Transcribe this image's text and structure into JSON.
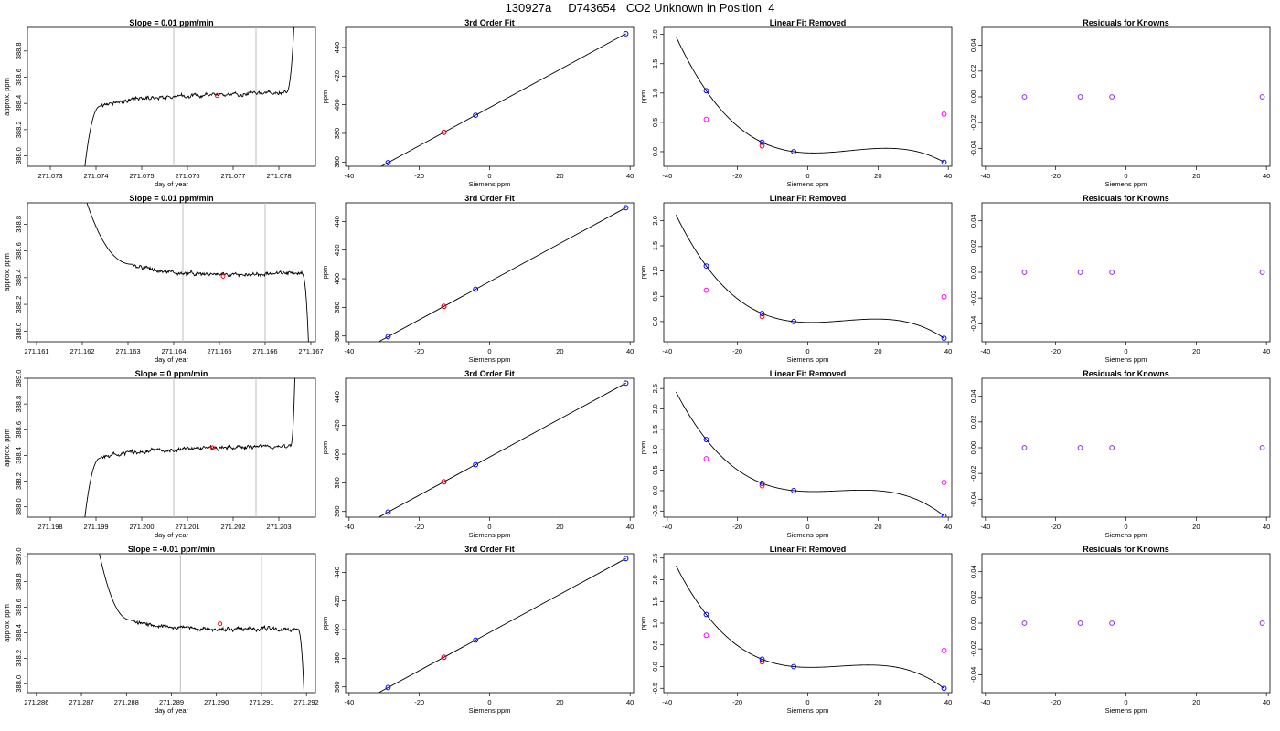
{
  "page_title": "130927a     D743654   CO2 Unknown in Position  4",
  "chart_data": [
    {
      "panel": "raw",
      "type": "line",
      "title": "Slope =  0.01  ppm/min",
      "xlabel": "day of year",
      "ylabel": "approx. ppm",
      "xlim": [
        271.0725,
        271.0788
      ],
      "ylim": [
        387.92,
        388.98
      ],
      "xticks": [
        271.073,
        271.074,
        271.075,
        271.076,
        271.077,
        271.078
      ],
      "yticks": [
        388.0,
        388.2,
        388.4,
        388.6,
        388.8
      ],
      "vlines": [
        271.0757,
        271.0775
      ],
      "mean_point": [
        271.07665,
        388.46
      ],
      "trace": {
        "start": 271.07375,
        "plateau_begin": 271.0741,
        "plateau_end": 271.07815,
        "end": 271.07833,
        "rise_from": 387.9,
        "jump_to": 388.98,
        "plateau_start_value": 388.38,
        "plateau_end_value": 388.48
      }
    },
    {
      "panel": "fit",
      "type": "line",
      "title": "3rd Order Fit",
      "xlabel": "Siemens ppm",
      "ylabel": "ppm",
      "xlim": [
        -41,
        41
      ],
      "ylim": [
        357,
        454
      ],
      "xticks": [
        -40,
        -20,
        0,
        20,
        40
      ],
      "yticks": [
        360,
        380,
        400,
        420,
        440
      ],
      "line_x": [
        -37.5,
        38.8
      ],
      "knowns_x": [
        -28.9,
        -13.0,
        -4.0,
        38.8
      ],
      "unknown_x": [
        -13.0
      ]
    },
    {
      "panel": "linfit",
      "type": "line",
      "title": "Linear Fit Removed",
      "xlabel": "Siemens ppm",
      "ylabel": "ppm",
      "xlim": [
        -41,
        41
      ],
      "ylim": [
        -0.25,
        2.12
      ],
      "xticks": [
        -40,
        -20,
        0,
        20,
        40
      ],
      "yticks": [
        0.0,
        0.5,
        1.0,
        1.5,
        2.0
      ],
      "knowns": [
        [
          -28.9,
          1.04
        ],
        [
          -13.0,
          0.16
        ],
        [
          -4.0,
          0.0
        ],
        [
          38.8,
          -0.18
        ]
      ],
      "magenta": [
        [
          -28.9,
          0.55
        ],
        [
          38.8,
          0.64
        ]
      ],
      "unknown": [
        [
          -13.0,
          0.1
        ]
      ],
      "curve": {
        "x_start": -37.5,
        "x_end": 38.8,
        "extrema_x": [
          -13.0,
          20.0
        ]
      }
    },
    {
      "panel": "resid",
      "type": "scatter",
      "title": "Residuals for Knowns",
      "xlabel": "Siemens ppm",
      "ylabel": "",
      "xlim": [
        -41,
        41
      ],
      "ylim": [
        -0.054,
        0.054
      ],
      "xticks": [
        -40,
        -20,
        0,
        20,
        40
      ],
      "yticks": [
        -0.04,
        -0.02,
        0.0,
        0.02,
        0.04
      ],
      "points": [
        [
          -28.9,
          0
        ],
        [
          -13.0,
          0
        ],
        [
          -4.0,
          0
        ],
        [
          38.8,
          0
        ]
      ]
    },
    {
      "panel": "raw",
      "type": "line",
      "title": "Slope =  0.01  ppm/min",
      "xlabel": "day of year",
      "ylabel": "approx. ppm",
      "xlim": [
        271.1608,
        271.1671
      ],
      "ylim": [
        387.92,
        388.96
      ],
      "xticks": [
        271.161,
        271.162,
        271.163,
        271.164,
        271.165,
        271.166,
        271.167
      ],
      "yticks": [
        388.0,
        388.2,
        388.4,
        388.6,
        388.8
      ],
      "vlines": [
        271.1642,
        271.166
      ],
      "mean_point": [
        271.16508,
        388.41
      ],
      "trace": {
        "start": 271.1621,
        "plateau_begin": 271.1631,
        "plateau_end": 271.1668,
        "end": 271.16695,
        "fall_from": 388.96,
        "fall_to": 387.9,
        "plateau_start_value": 388.5,
        "plateau_end_value": 388.43
      }
    },
    {
      "panel": "fit",
      "type": "line",
      "title": "3rd Order Fit",
      "xlabel": "Siemens ppm",
      "ylabel": "ppm",
      "xlim": [
        -41,
        41
      ],
      "ylim": [
        356,
        453
      ],
      "xticks": [
        -40,
        -20,
        0,
        20,
        40
      ],
      "yticks": [
        360,
        380,
        400,
        420,
        440
      ],
      "line_x": [
        -37.5,
        38.8
      ],
      "knowns_x": [
        -28.9,
        -13.0,
        -4.0,
        38.8
      ],
      "unknown_x": [
        -13.0
      ]
    },
    {
      "panel": "linfit",
      "type": "line",
      "title": "Linear Fit Removed",
      "xlabel": "Siemens ppm",
      "ylabel": "ppm",
      "xlim": [
        -41,
        41
      ],
      "ylim": [
        -0.4,
        2.35
      ],
      "xticks": [
        -40,
        -20,
        0,
        20,
        40
      ],
      "yticks": [
        0.0,
        0.5,
        1.0,
        1.5,
        2.0
      ],
      "knowns": [
        [
          -28.9,
          1.1
        ],
        [
          -13.0,
          0.16
        ],
        [
          -4.0,
          0.0
        ],
        [
          38.8,
          -0.33
        ]
      ],
      "magenta": [
        [
          -28.9,
          0.62
        ],
        [
          38.8,
          0.49
        ]
      ],
      "unknown": [
        [
          -13.0,
          0.1
        ]
      ],
      "curve": {
        "x_start": -37.5,
        "x_end": 38.8,
        "extrema_x": [
          -13.0,
          20.0
        ]
      }
    },
    {
      "panel": "resid",
      "type": "scatter",
      "title": "Residuals for Knowns",
      "xlabel": "Siemens ppm",
      "ylabel": "",
      "xlim": [
        -41,
        41
      ],
      "ylim": [
        -0.054,
        0.054
      ],
      "xticks": [
        -40,
        -20,
        0,
        20,
        40
      ],
      "yticks": [
        -0.04,
        -0.02,
        0.0,
        0.02,
        0.04
      ],
      "points": [
        [
          -28.9,
          0
        ],
        [
          -13.0,
          0
        ],
        [
          -4.0,
          0
        ],
        [
          38.8,
          0
        ]
      ]
    },
    {
      "panel": "raw",
      "type": "line",
      "title": "Slope =  0  ppm/min",
      "xlabel": "day of year",
      "ylabel": "approx. ppm",
      "xlim": [
        271.1975,
        271.2038
      ],
      "ylim": [
        387.92,
        389.0
      ],
      "xticks": [
        271.198,
        271.199,
        271.2,
        271.201,
        271.202,
        271.203
      ],
      "xticklabels": [
        "271.198",
        "271.199",
        "271.200",
        "271.201",
        "271.202",
        "271.203"
      ],
      "yticks": [
        388.0,
        388.2,
        388.4,
        388.6,
        388.8,
        389.0
      ],
      "vlines": [
        271.2007,
        271.2025
      ],
      "mean_point": [
        271.20155,
        388.46
      ],
      "trace": {
        "start": 271.19875,
        "plateau_begin": 271.1991,
        "plateau_end": 271.20325,
        "end": 271.20335,
        "rise_from": 387.9,
        "jump_to": 389.0,
        "plateau_start_value": 388.38,
        "plateau_end_value": 388.47
      }
    },
    {
      "panel": "fit",
      "type": "line",
      "title": "3rd Order Fit",
      "xlabel": "Siemens ppm",
      "ylabel": "ppm",
      "xlim": [
        -41,
        41
      ],
      "ylim": [
        356,
        453
      ],
      "xticks": [
        -40,
        -20,
        0,
        20,
        40
      ],
      "yticks": [
        360,
        380,
        400,
        420,
        440
      ],
      "line_x": [
        -37.5,
        38.8
      ],
      "knowns_x": [
        -28.9,
        -13.0,
        -4.0,
        38.8
      ],
      "unknown_x": [
        -13.0
      ]
    },
    {
      "panel": "linfit",
      "type": "line",
      "title": "Linear Fit Removed",
      "xlabel": "Siemens ppm",
      "ylabel": "ppm",
      "xlim": [
        -41,
        41
      ],
      "ylim": [
        -0.65,
        2.75
      ],
      "xticks": [
        -40,
        -20,
        0,
        20,
        40
      ],
      "yticks": [
        -0.5,
        0.0,
        0.5,
        1.0,
        1.5,
        2.0,
        2.5
      ],
      "knowns": [
        [
          -28.9,
          1.25
        ],
        [
          -13.0,
          0.18
        ],
        [
          -4.0,
          0.0
        ],
        [
          38.8,
          -0.62
        ]
      ],
      "magenta": [
        [
          -28.9,
          0.78
        ],
        [
          38.8,
          0.2
        ]
      ],
      "unknown": [
        [
          -13.0,
          0.12
        ]
      ],
      "curve": {
        "x_start": -37.5,
        "x_end": 38.8,
        "extrema_x": [
          -13.0,
          16.0
        ]
      }
    },
    {
      "panel": "resid",
      "type": "scatter",
      "title": "Residuals for Knowns",
      "xlabel": "Siemens ppm",
      "ylabel": "",
      "xlim": [
        -41,
        41
      ],
      "ylim": [
        -0.054,
        0.054
      ],
      "xticks": [
        -40,
        -20,
        0,
        20,
        40
      ],
      "yticks": [
        -0.04,
        -0.02,
        0.0,
        0.02,
        0.04
      ],
      "points": [
        [
          -28.9,
          0
        ],
        [
          -13.0,
          0
        ],
        [
          -4.0,
          0
        ],
        [
          38.8,
          0
        ]
      ]
    },
    {
      "panel": "raw",
      "type": "line",
      "title": "Slope =  -0.01  ppm/min",
      "xlabel": "day of year",
      "ylabel": "approx. ppm",
      "xlim": [
        271.2858,
        271.2922
      ],
      "ylim": [
        387.93,
        389.02
      ],
      "xticks": [
        271.286,
        271.287,
        271.288,
        271.289,
        271.29,
        271.291,
        271.292
      ],
      "xticklabels": [
        "271.286",
        "271.287",
        "271.288",
        "271.289",
        "271.290",
        "271.291",
        "271.292"
      ],
      "yticks": [
        388.0,
        388.2,
        388.4,
        388.6,
        388.8,
        389.0
      ],
      "vlines": [
        271.2892,
        271.291
      ],
      "mean_point": [
        271.29008,
        388.47
      ],
      "trace": {
        "start": 271.2874,
        "plateau_begin": 271.2881,
        "plateau_end": 271.2918,
        "end": 271.29195,
        "fall_from": 389.02,
        "fall_to": 387.9,
        "plateau_start_value": 388.5,
        "plateau_end_value": 388.43
      }
    },
    {
      "panel": "fit",
      "type": "line",
      "title": "3rd Order Fit",
      "xlabel": "Siemens ppm",
      "ylabel": "ppm",
      "xlim": [
        -41,
        41
      ],
      "ylim": [
        356,
        453
      ],
      "xticks": [
        -40,
        -20,
        0,
        20,
        40
      ],
      "yticks": [
        360,
        380,
        400,
        420,
        440
      ],
      "line_x": [
        -37.5,
        38.8
      ],
      "knowns_x": [
        -28.9,
        -13.0,
        -4.0,
        38.8
      ],
      "unknown_x": [
        -13.0
      ]
    },
    {
      "panel": "linfit",
      "type": "line",
      "title": "Linear Fit Removed",
      "xlabel": "Siemens ppm",
      "ylabel": "ppm",
      "xlim": [
        -41,
        41
      ],
      "ylim": [
        -0.6,
        2.6
      ],
      "xticks": [
        -40,
        -20,
        0,
        20,
        40
      ],
      "yticks": [
        -0.5,
        0.0,
        0.5,
        1.0,
        1.5,
        2.0,
        2.5
      ],
      "knowns": [
        [
          -28.9,
          1.2
        ],
        [
          -13.0,
          0.17
        ],
        [
          -4.0,
          0.0
        ],
        [
          38.8,
          -0.5
        ]
      ],
      "magenta": [
        [
          -28.9,
          0.72
        ],
        [
          38.8,
          0.37
        ]
      ],
      "unknown": [
        [
          -13.0,
          0.11
        ]
      ],
      "curve": {
        "x_start": -37.5,
        "x_end": 38.8,
        "extrema_x": [
          -13.0,
          18.0
        ]
      }
    },
    {
      "panel": "resid",
      "type": "scatter",
      "title": "Residuals for Knowns",
      "xlabel": "Siemens ppm",
      "ylabel": "",
      "xlim": [
        -41,
        41
      ],
      "ylim": [
        -0.054,
        0.054
      ],
      "xticks": [
        -40,
        -20,
        0,
        20,
        40
      ],
      "yticks": [
        -0.04,
        -0.02,
        0.0,
        0.02,
        0.04
      ],
      "points": [
        [
          -28.9,
          0
        ],
        [
          -13.0,
          0
        ],
        [
          -4.0,
          0
        ],
        [
          38.8,
          0
        ]
      ]
    }
  ],
  "colors": {
    "trace": "#000000",
    "vline": "#bebebe",
    "known": "#0000ff",
    "unknown": "#ff0000",
    "magenta": "#ff00ff",
    "residual": "#8a2be2"
  }
}
